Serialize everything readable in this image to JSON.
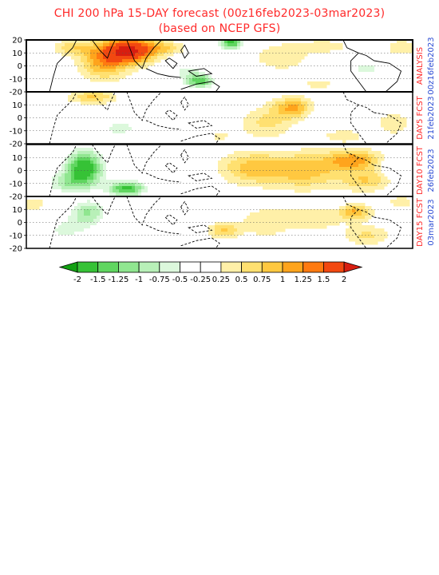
{
  "title": "CHI 200 hPa 15-DAY forecast (00z16feb2023-03mar2023)",
  "subtitle": "(based on NCEP GFS)",
  "colors": {
    "title": "#ff2a2a",
    "panel_label_red": "#ff2a2a",
    "panel_label_blue": "#2a4bd4"
  },
  "chart_data": {
    "type": "heatmap",
    "title": "CHI 200 hPa 15-DAY forecast (00z16feb2023-03mar2023)",
    "subtitle": "(based on NCEP GFS)",
    "ytick_labels": [
      "20",
      "10",
      "0",
      "-10",
      "-20"
    ],
    "ylim": [
      -20,
      20
    ],
    "grid": "dotted horizontal at 10, 0, -10",
    "panels": [
      {
        "label": "ANALYSIS",
        "date": "00z16feb2023"
      },
      {
        "label": "DAY5 FCST",
        "date": "21feb2023"
      },
      {
        "label": "DAY10 FCST",
        "date": "26feb2023"
      },
      {
        "label": "DAY15 FCST",
        "date": "03mar2023"
      }
    ],
    "colorbar": {
      "tick_labels": [
        "-2",
        "-1.5",
        "-1.25",
        "-1",
        "-0.75",
        "-0.5",
        "-0.25",
        "0.25",
        "0.5",
        "0.75",
        "1",
        "1.25",
        "1.5",
        "2"
      ],
      "levels": [
        -2,
        -1.5,
        -1.25,
        -1,
        -0.75,
        -0.5,
        -0.25,
        0.25,
        0.5,
        0.75,
        1,
        1.25,
        1.5,
        2
      ],
      "colors": [
        "#12a012",
        "#36c236",
        "#60d660",
        "#90e690",
        "#b8f0b8",
        "#dcf8dc",
        "#ffffff",
        "#fff0a8",
        "#ffe070",
        "#ffc840",
        "#ffa41c",
        "#ff7a10",
        "#f24810",
        "#d81e10"
      ]
    },
    "panel_blobs": [
      [
        {
          "lon": 0.27,
          "lat": 12,
          "v": 2.0,
          "rx": 0.065,
          "ry": 10
        },
        {
          "lon": 0.2,
          "lat": 4,
          "v": 1.1,
          "rx": 0.06,
          "ry": 14
        },
        {
          "lon": 0.12,
          "lat": 14,
          "v": 0.6,
          "rx": 0.05,
          "ry": 6
        },
        {
          "lon": 0.36,
          "lat": 14,
          "v": 0.6,
          "rx": 0.05,
          "ry": 5
        },
        {
          "lon": 0.53,
          "lat": 18,
          "v": -1.6,
          "rx": 0.03,
          "ry": 6
        },
        {
          "lon": 0.45,
          "lat": -12,
          "v": -1.4,
          "rx": 0.04,
          "ry": 5
        },
        {
          "lon": 0.42,
          "lat": -4,
          "v": -0.6,
          "rx": 0.05,
          "ry": 7
        },
        {
          "lon": 0.66,
          "lat": 7,
          "v": 0.5,
          "rx": 0.07,
          "ry": 10
        },
        {
          "lon": 0.77,
          "lat": 15,
          "v": 0.45,
          "rx": 0.07,
          "ry": 5
        },
        {
          "lon": 0.88,
          "lat": -2,
          "v": -0.55,
          "rx": 0.07,
          "ry": 10
        },
        {
          "lon": 0.97,
          "lat": 14,
          "v": 0.5,
          "rx": 0.04,
          "ry": 6
        },
        {
          "lon": 0.76,
          "lat": -14,
          "v": 0.35,
          "rx": 0.06,
          "ry": 4
        }
      ],
      [
        {
          "lon": 0.17,
          "lat": 16,
          "v": 0.8,
          "rx": 0.06,
          "ry": 5
        },
        {
          "lon": 0.24,
          "lat": -8,
          "v": -0.6,
          "rx": 0.06,
          "ry": 8
        },
        {
          "lon": 0.38,
          "lat": -12,
          "v": -0.45,
          "rx": 0.07,
          "ry": 6
        },
        {
          "lon": 0.5,
          "lat": -14,
          "v": 0.35,
          "rx": 0.03,
          "ry": 4
        },
        {
          "lon": 0.69,
          "lat": 8,
          "v": 1.0,
          "rx": 0.05,
          "ry": 8
        },
        {
          "lon": 0.62,
          "lat": -4,
          "v": 0.55,
          "rx": 0.07,
          "ry": 12
        },
        {
          "lon": 0.82,
          "lat": -14,
          "v": 0.5,
          "rx": 0.05,
          "ry": 5
        },
        {
          "lon": 0.78,
          "lat": 2,
          "v": -0.35,
          "rx": 0.04,
          "ry": 8
        },
        {
          "lon": 0.95,
          "lat": -4,
          "v": 0.4,
          "rx": 0.05,
          "ry": 10
        },
        {
          "lon": 0.86,
          "lat": 14,
          "v": -0.3,
          "rx": 0.04,
          "ry": 4
        }
      ],
      [
        {
          "lon": 0.15,
          "lat": 2,
          "v": -1.8,
          "rx": 0.05,
          "ry": 14
        },
        {
          "lon": 0.26,
          "lat": -14,
          "v": -1.6,
          "rx": 0.05,
          "ry": 6
        },
        {
          "lon": 0.1,
          "lat": -10,
          "v": -0.7,
          "rx": 0.06,
          "ry": 8
        },
        {
          "lon": 0.38,
          "lat": 6,
          "v": -0.35,
          "rx": 0.05,
          "ry": 6
        },
        {
          "lon": 0.58,
          "lat": 2,
          "v": 0.8,
          "rx": 0.08,
          "ry": 12
        },
        {
          "lon": 0.72,
          "lat": 0,
          "v": 0.9,
          "rx": 0.1,
          "ry": 14
        },
        {
          "lon": 0.85,
          "lat": 8,
          "v": 1.1,
          "rx": 0.07,
          "ry": 8
        },
        {
          "lon": 0.88,
          "lat": -8,
          "v": 0.7,
          "rx": 0.06,
          "ry": 8
        },
        {
          "lon": 0.95,
          "lat": 4,
          "v": -0.4,
          "rx": 0.04,
          "ry": 6
        }
      ],
      [
        {
          "lon": 0.16,
          "lat": 8,
          "v": -1.0,
          "rx": 0.05,
          "ry": 10
        },
        {
          "lon": 0.1,
          "lat": -6,
          "v": -0.55,
          "rx": 0.07,
          "ry": 10
        },
        {
          "lon": 0.28,
          "lat": -12,
          "v": -0.4,
          "rx": 0.05,
          "ry": 6
        },
        {
          "lon": 0.02,
          "lat": 14,
          "v": 0.45,
          "rx": 0.03,
          "ry": 5
        },
        {
          "lon": 0.51,
          "lat": -6,
          "v": 0.75,
          "rx": 0.04,
          "ry": 6
        },
        {
          "lon": 0.62,
          "lat": 0,
          "v": 0.45,
          "rx": 0.07,
          "ry": 12
        },
        {
          "lon": 0.75,
          "lat": 4,
          "v": 0.45,
          "rx": 0.07,
          "ry": 10
        },
        {
          "lon": 0.78,
          "lat": 14,
          "v": -0.3,
          "rx": 0.04,
          "ry": 4
        },
        {
          "lon": 0.85,
          "lat": 8,
          "v": 1.0,
          "rx": 0.04,
          "ry": 6
        },
        {
          "lon": 0.88,
          "lat": -10,
          "v": 0.55,
          "rx": 0.06,
          "ry": 8
        },
        {
          "lon": 0.97,
          "lat": 16,
          "v": 0.5,
          "rx": 0.03,
          "ry": 4
        }
      ]
    ]
  }
}
